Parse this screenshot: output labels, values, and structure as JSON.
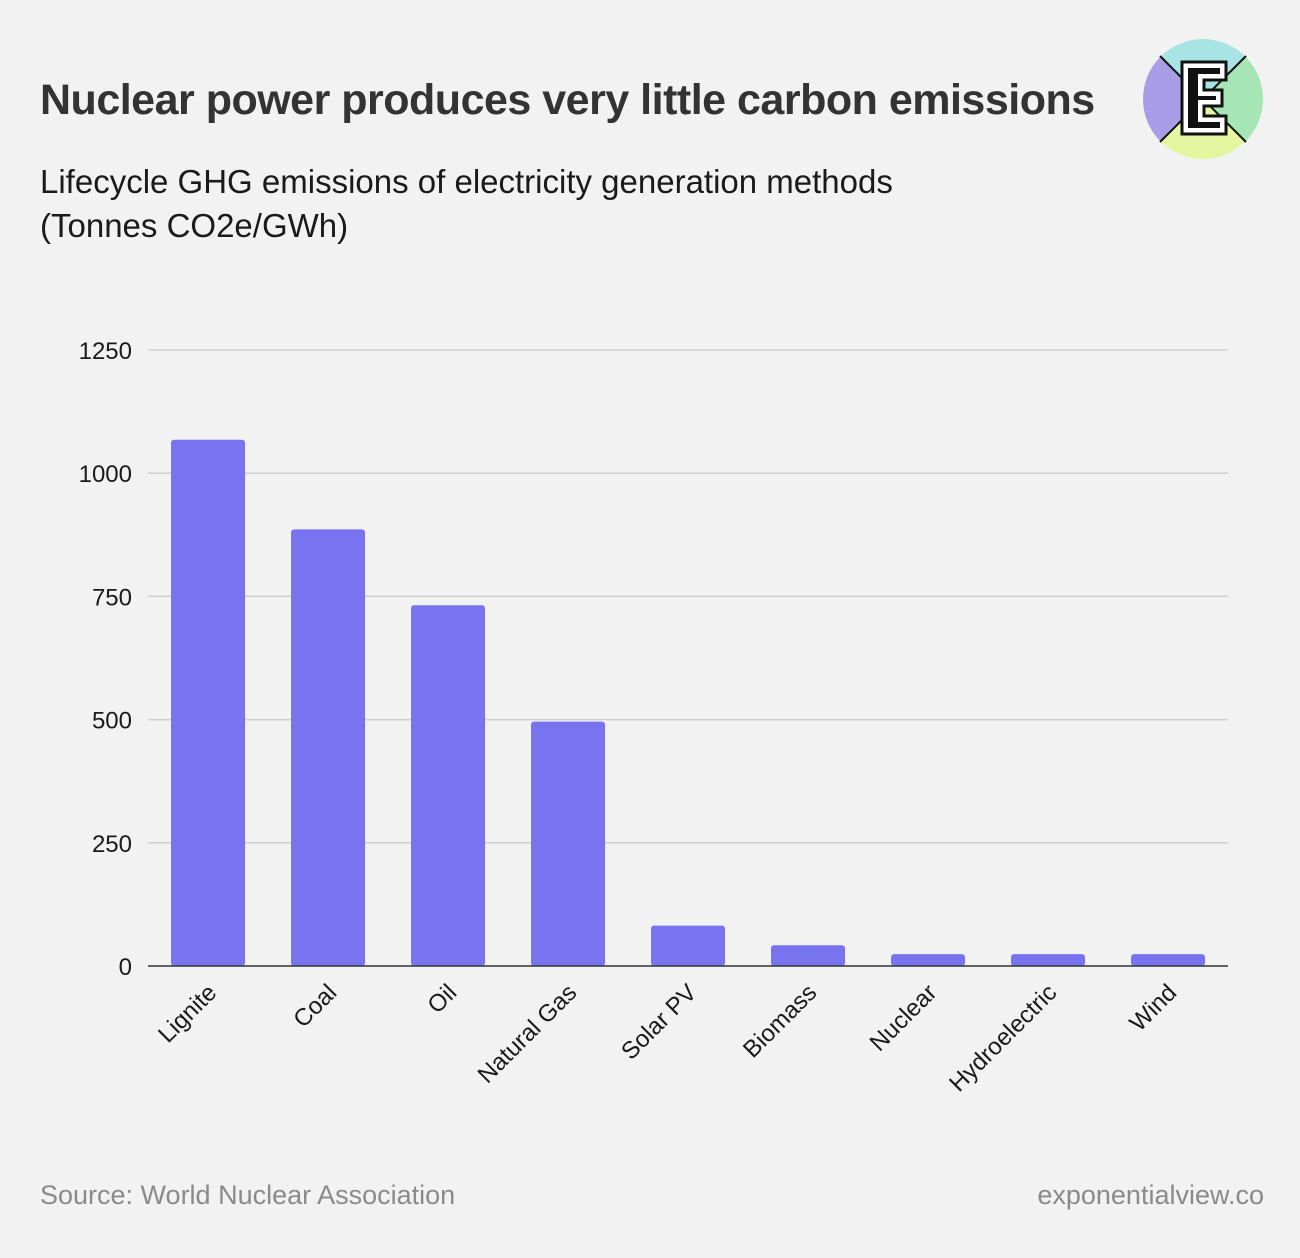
{
  "header": {
    "title": "Nuclear power produces very little carbon emissions",
    "subtitle_line1": "Lifecycle GHG emissions of electricity generation methods",
    "subtitle_line2": "(Tonnes CO2e/GWh)"
  },
  "logo": {
    "icon": "exponential-view-e-logo",
    "letter": "E",
    "colors": {
      "left": "#a89de6",
      "top": "#a8e4e4",
      "right": "#a6e6b4",
      "bottom": "#e4f6a0"
    }
  },
  "chart_data": {
    "type": "bar",
    "categories": [
      "Lignite",
      "Coal",
      "Oil",
      "Natural Gas",
      "Solar PV",
      "Biomass",
      "Nuclear",
      "Hydroelectric",
      "Wind"
    ],
    "values": [
      1068,
      886,
      732,
      496,
      82,
      42,
      24,
      24,
      24
    ],
    "ylim": [
      0,
      1250
    ],
    "yticks": [
      0,
      250,
      500,
      750,
      1000,
      1250
    ],
    "title": "Lifecycle GHG emissions of electricity generation methods",
    "xlabel": "",
    "ylabel": "Tonnes CO2e/GWh",
    "grid": true,
    "bar_color": "#7873ee"
  },
  "footer": {
    "source": "Source: World Nuclear Association",
    "site": "exponentialview.co"
  }
}
